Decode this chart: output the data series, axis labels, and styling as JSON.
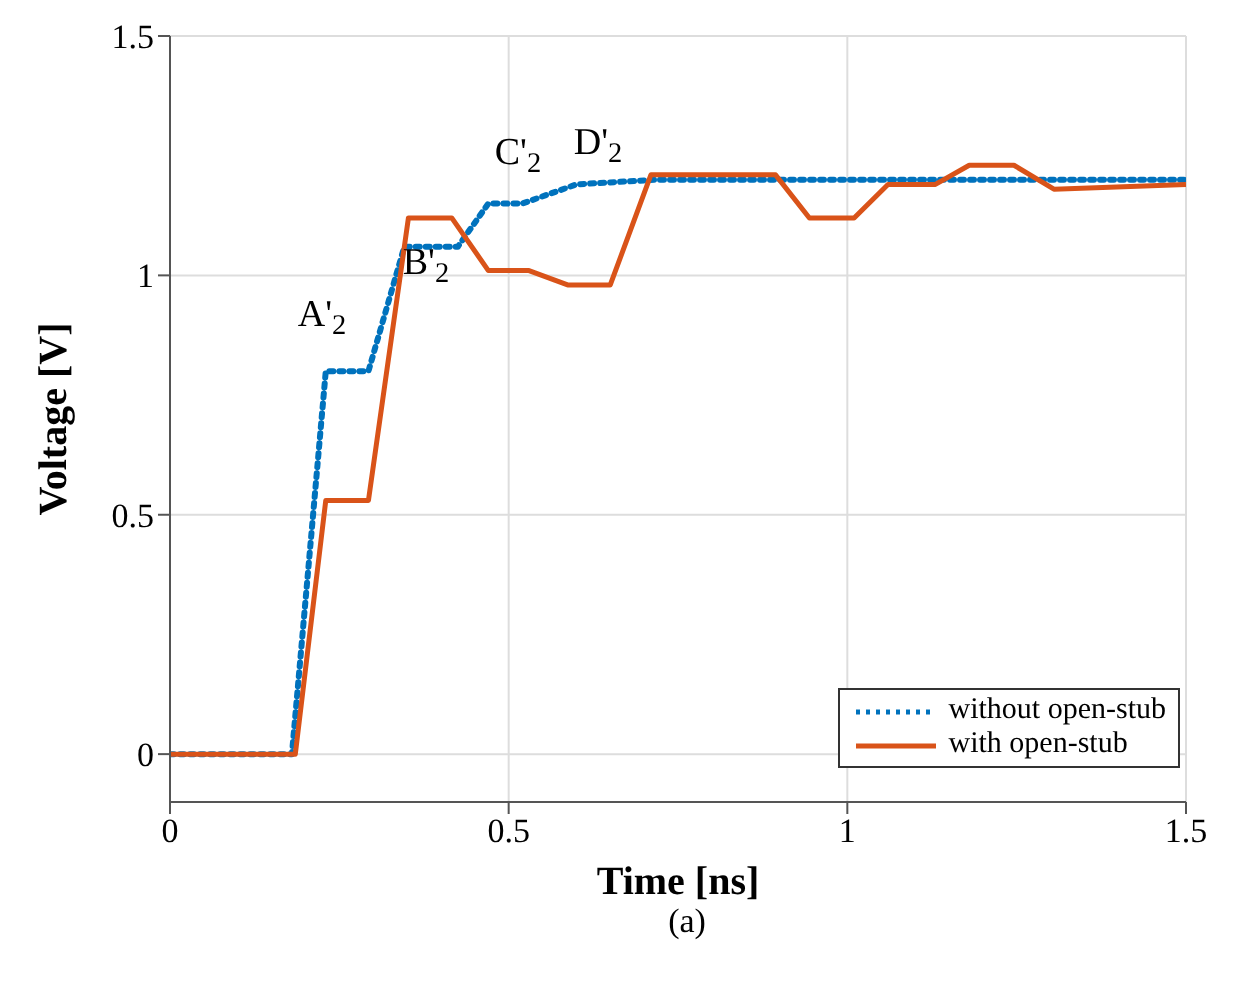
{
  "chart_data": {
    "type": "line",
    "xlabel": "Time [ns]",
    "ylabel": "Voltage [V]",
    "xlim": [
      0,
      1.5
    ],
    "xticks": [
      0,
      0.5,
      1,
      1.5
    ],
    "ylim": [
      -0.1,
      1.5
    ],
    "yticks": [
      0,
      0.5,
      1,
      1.5
    ],
    "grid": true,
    "legend": "bottom right",
    "marker": "none",
    "series": [
      {
        "name": "without open-stub",
        "color": "#0072bd",
        "line_style": "dotted",
        "x": [
          0,
          0.18,
          0.23,
          0.293,
          0.346,
          0.425,
          0.47,
          0.52,
          0.6,
          0.72,
          1.5
        ],
        "values": [
          0,
          0,
          0.8,
          0.8,
          1.06,
          1.06,
          1.15,
          1.15,
          1.19,
          1.2,
          1.2
        ]
      },
      {
        "name": "with open-stub",
        "color": "#d95319",
        "line_style": "solid",
        "x": [
          0,
          0.185,
          0.23,
          0.293,
          0.352,
          0.416,
          0.47,
          0.53,
          0.587,
          0.65,
          0.71,
          0.894,
          0.944,
          1.01,
          1.06,
          1.13,
          1.18,
          1.246,
          1.305,
          1.5
        ],
        "values": [
          0,
          0,
          0.53,
          0.53,
          1.12,
          1.12,
          1.01,
          1.01,
          0.98,
          0.98,
          1.21,
          1.21,
          1.12,
          1.12,
          1.19,
          1.19,
          1.23,
          1.23,
          1.18,
          1.19
        ]
      }
    ],
    "annotations": [
      "A'$_{2}$",
      "B'$_{2}$",
      "C'$_{2}$",
      "D'$_{2}$",
      "(a)"
    ]
  }
}
